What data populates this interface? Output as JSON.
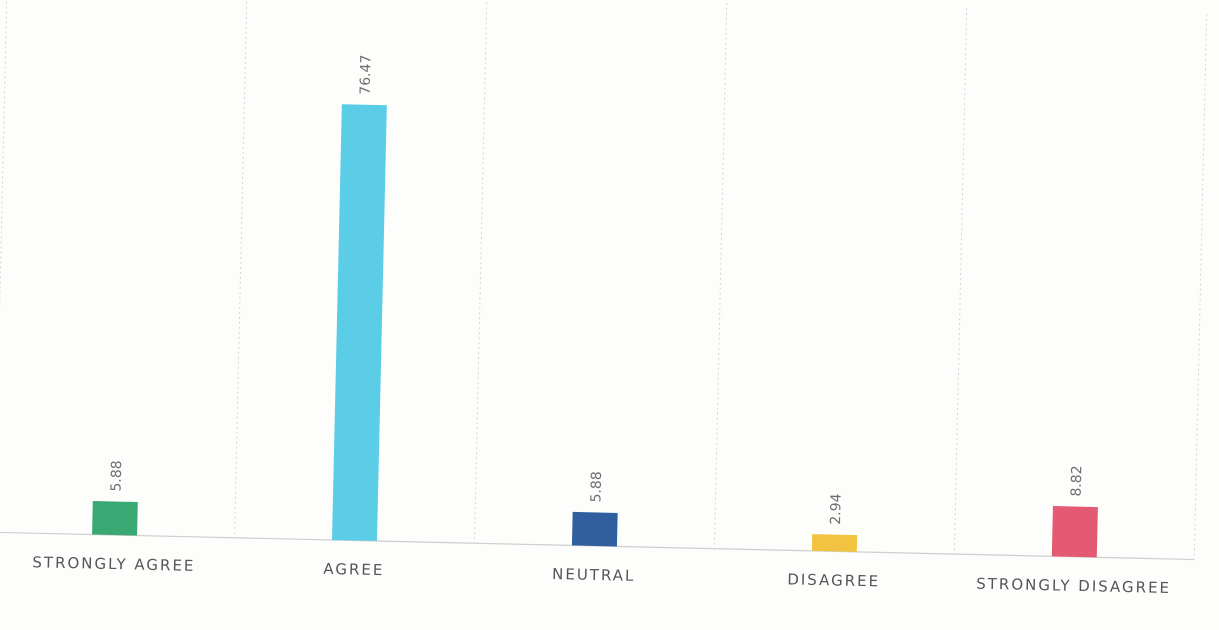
{
  "chart_data": {
    "type": "bar",
    "categories": [
      "STRONGLY AGREE",
      "AGREE",
      "NEUTRAL",
      "DISAGREE",
      "STRONGLY DISAGREE"
    ],
    "values": [
      5.88,
      76.47,
      5.88,
      2.94,
      8.82
    ],
    "value_labels": [
      "5.88",
      "76.47",
      "5.88",
      "2.94",
      "8.82"
    ],
    "colors": [
      "#3aa872",
      "#5ccde6",
      "#2f5f9e",
      "#f2c340",
      "#e55a73"
    ],
    "title": "",
    "xlabel": "",
    "ylabel": "",
    "ylim": [
      0,
      80
    ],
    "grid": true,
    "legend": "none"
  }
}
